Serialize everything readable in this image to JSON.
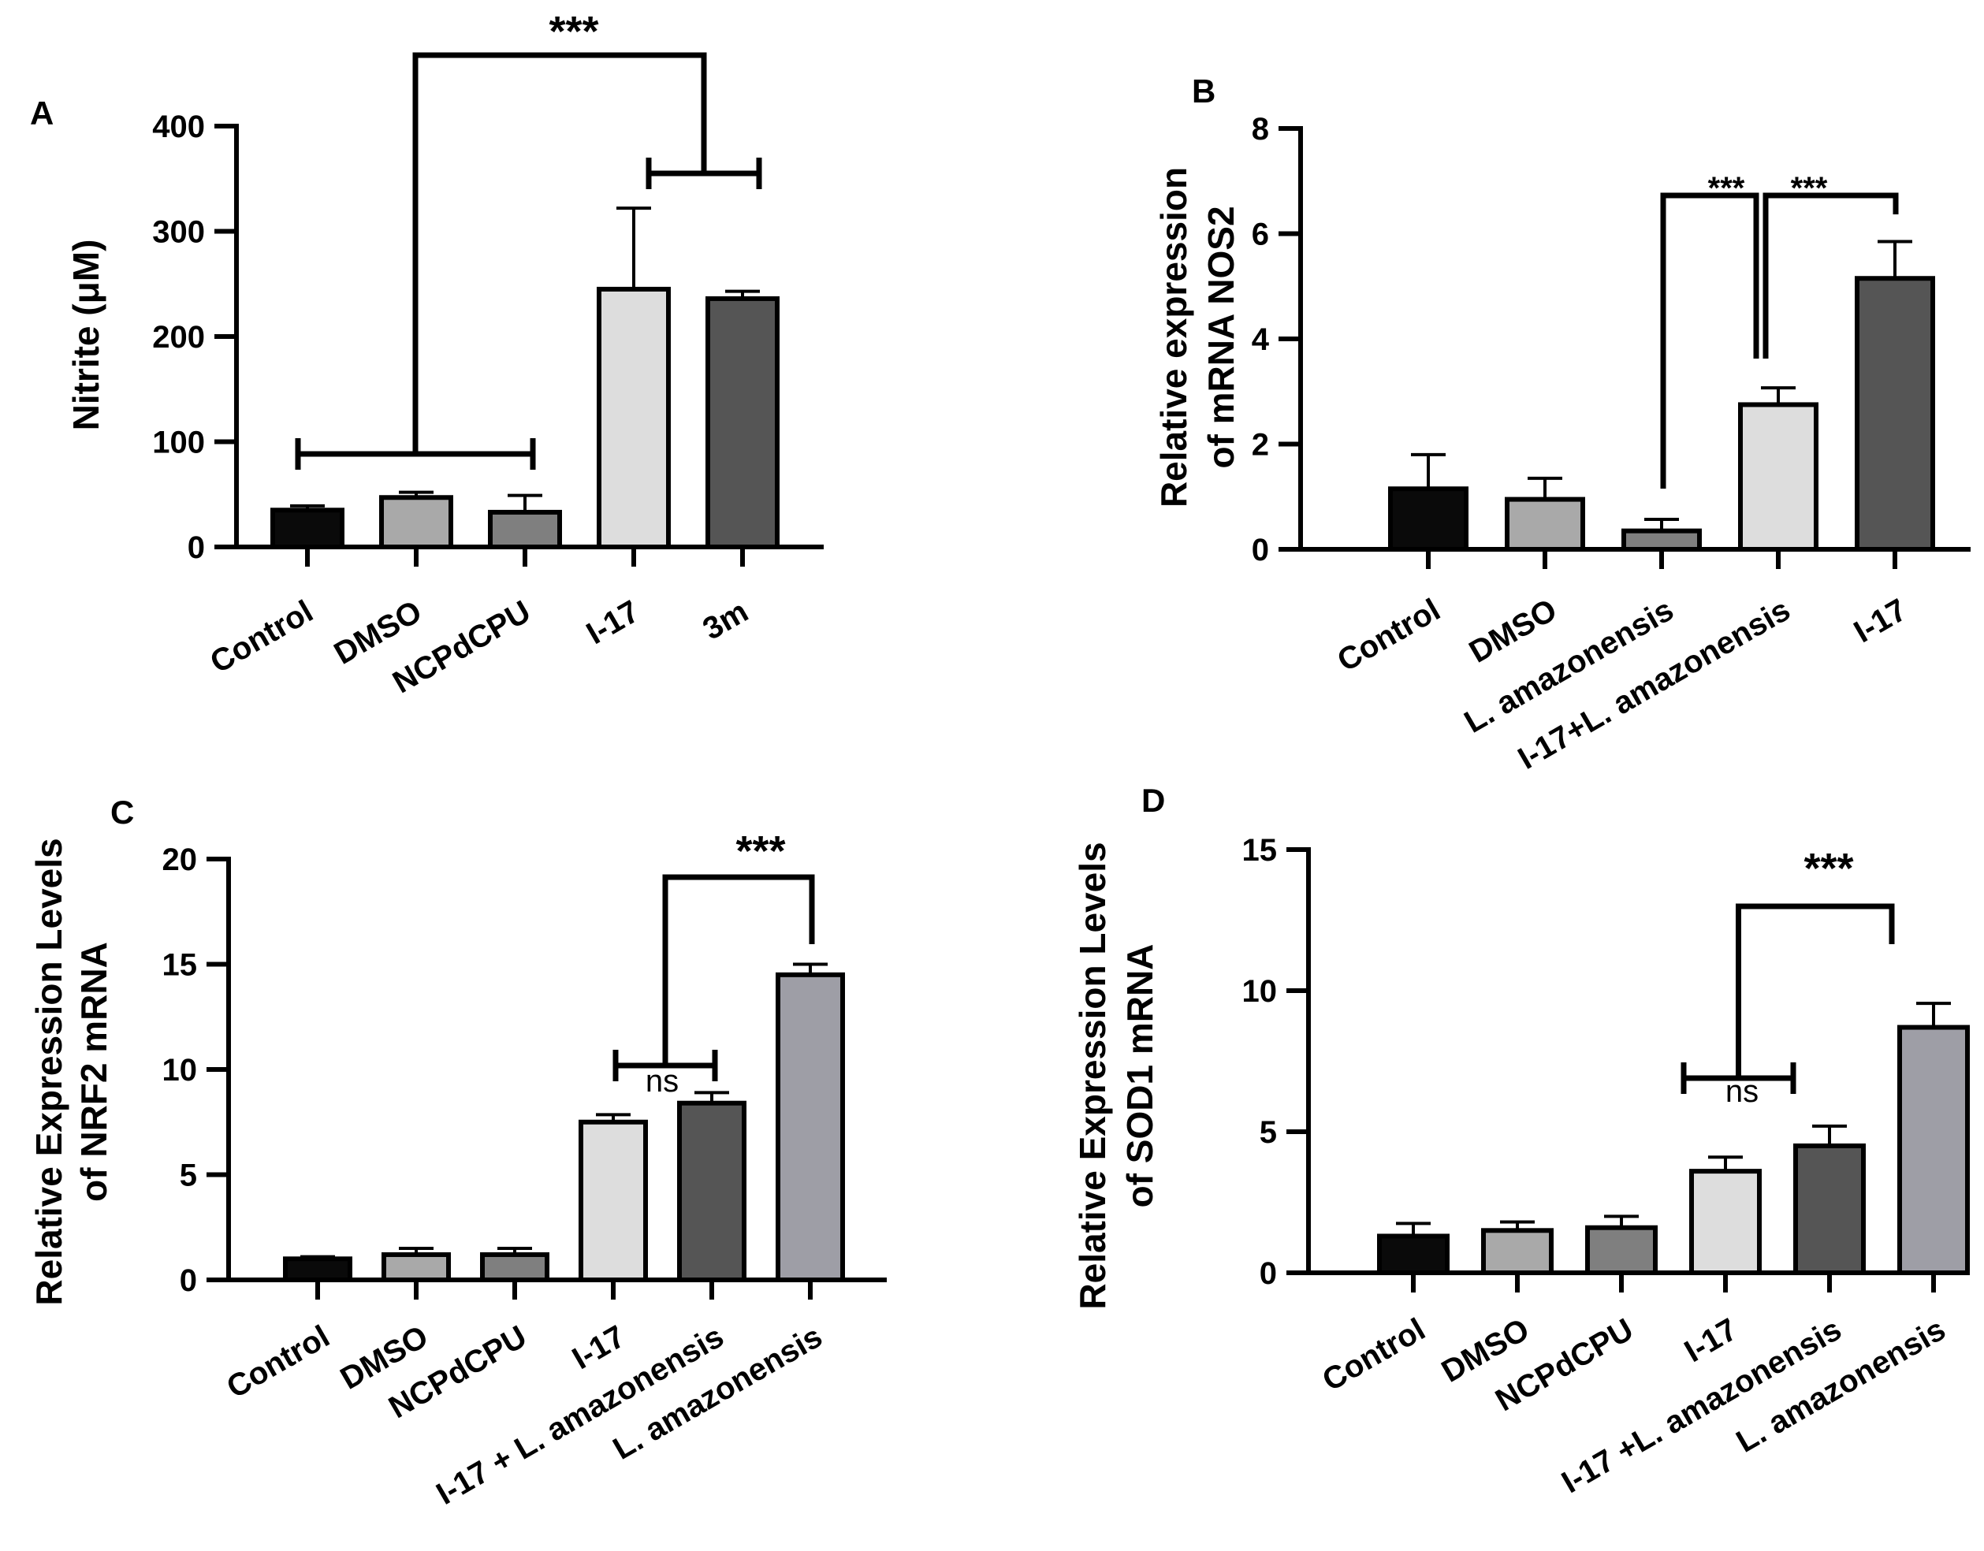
{
  "chart_data": [
    {
      "panel": "A",
      "type": "bar",
      "ylabel": "Nitrite (μM)",
      "ylim": [
        0,
        400
      ],
      "yticks": [
        0,
        100,
        200,
        300,
        400
      ],
      "categories": [
        "Control",
        "DMSO",
        "NCPdCPU",
        "I-17",
        "3m"
      ],
      "values": [
        35,
        47,
        33,
        245,
        236
      ],
      "errors": [
        4,
        5,
        16,
        77,
        7
      ],
      "colors": [
        "#0a0a0a",
        "#a9a9a9",
        "#7f7f7f",
        "#dddddd",
        "#555555"
      ],
      "significance": [
        {
          "label": "***",
          "group1": [
            0,
            2
          ],
          "group2": [
            3,
            4
          ]
        }
      ]
    },
    {
      "panel": "B",
      "type": "bar",
      "ylabel": [
        "Relative expression",
        "of mRNA NOS2"
      ],
      "ylim": [
        0,
        8
      ],
      "yticks": [
        0,
        2,
        4,
        6,
        8
      ],
      "categories": [
        "Control",
        "DMSO",
        "L. amazonensis",
        "I-17+L. amazonensis",
        "I-17"
      ],
      "values": [
        1.15,
        0.95,
        0.35,
        2.75,
        5.15
      ],
      "errors": [
        0.65,
        0.4,
        0.22,
        0.32,
        0.7
      ],
      "colors": [
        "#0a0a0a",
        "#a9a9a9",
        "#7f7f7f",
        "#dddddd",
        "#555555"
      ],
      "significance": [
        {
          "label": "***",
          "group1": [
            2,
            2
          ],
          "group2": [
            3,
            3
          ]
        },
        {
          "label": "***",
          "group1": [
            3,
            3
          ],
          "group2": [
            4,
            4
          ]
        }
      ]
    },
    {
      "panel": "C",
      "type": "bar",
      "ylabel": [
        "Relative Expression Levels",
        "of NRF2 mRNA"
      ],
      "ylim": [
        0,
        20
      ],
      "yticks": [
        0,
        5,
        10,
        15,
        20
      ],
      "categories": [
        "Control",
        "DMSO",
        "NCPdCPU",
        "I-17",
        "I-17 + L. amazonensis",
        "L. amazonensis"
      ],
      "values": [
        1.0,
        1.2,
        1.2,
        7.5,
        8.4,
        14.5
      ],
      "errors": [
        0.1,
        0.3,
        0.3,
        0.35,
        0.5,
        0.5
      ],
      "colors": [
        "#0a0a0a",
        "#a9a9a9",
        "#7f7f7f",
        "#dddddd",
        "#555555",
        "#9e9ea6"
      ],
      "significance": [
        {
          "label": "ns",
          "group1": [
            3,
            3
          ],
          "group2": [
            4,
            4
          ]
        },
        {
          "label": "***",
          "group1": [
            3,
            4
          ],
          "group2": [
            5,
            5
          ]
        }
      ]
    },
    {
      "panel": "D",
      "type": "bar",
      "ylabel": [
        "Relative Expression Levels",
        "of SOD1 mRNA"
      ],
      "ylim": [
        0,
        15
      ],
      "yticks": [
        0,
        5,
        10,
        15
      ],
      "categories": [
        "Control",
        "DMSO",
        "NCPdCPU",
        "I-17",
        "I-17 +L. amazonensis",
        "L. amazonensis"
      ],
      "values": [
        1.3,
        1.5,
        1.6,
        3.6,
        4.5,
        8.7
      ],
      "errors": [
        0.45,
        0.3,
        0.4,
        0.5,
        0.7,
        0.85
      ],
      "colors": [
        "#0a0a0a",
        "#a9a9a9",
        "#7f7f7f",
        "#dddddd",
        "#555555",
        "#9e9ea6"
      ],
      "significance": [
        {
          "label": "ns",
          "group1": [
            3,
            3
          ],
          "group2": [
            4,
            4
          ]
        },
        {
          "label": "***",
          "group1": [
            3,
            4
          ],
          "group2": [
            5,
            5
          ]
        }
      ]
    }
  ]
}
